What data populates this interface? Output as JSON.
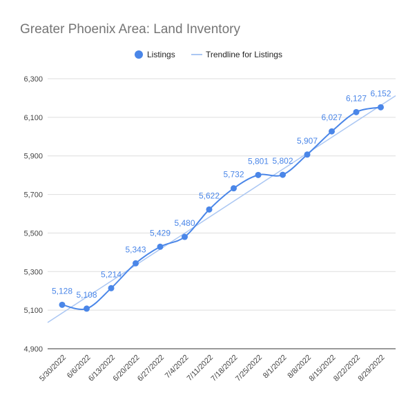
{
  "chart_data": {
    "type": "line",
    "title": "Greater Phoenix Area:  Land Inventory",
    "categories": [
      "5/30/2022",
      "6/6/2022",
      "6/13/2022",
      "6/20/2022",
      "6/27/2022",
      "7/4/2022",
      "7/11/2022",
      "7/18/2022",
      "7/25/2022",
      "8/1/2022",
      "8/8/2022",
      "8/15/2022",
      "8/22/2022",
      "8/29/2022"
    ],
    "series": [
      {
        "name": "Listings",
        "values": [
          5128,
          5108,
          5214,
          5343,
          5429,
          5480,
          5622,
          5732,
          5801,
          5802,
          5907,
          6027,
          6127,
          6152
        ],
        "labels": [
          "5,128",
          "5,108",
          "5,214",
          "5,343",
          "5,429",
          "5,480",
          "5,622",
          "5,732",
          "5,801",
          "5,802",
          "5,907",
          "6,027",
          "6,127",
          "6,152"
        ],
        "color": "#4a86e8"
      }
    ],
    "trendline": {
      "name": "Trendline for Listings",
      "color": "#abc7f3",
      "start": 5036,
      "end": 6212
    },
    "ylim": [
      4900,
      6300
    ],
    "yticks": [
      4900,
      5100,
      5300,
      5500,
      5700,
      5900,
      6100,
      6300
    ],
    "ytick_labels": [
      "4,900",
      "5,100",
      "5,300",
      "5,500",
      "5,700",
      "5,900",
      "6,100",
      "6,300"
    ],
    "grid": true,
    "legend_position": "top"
  }
}
